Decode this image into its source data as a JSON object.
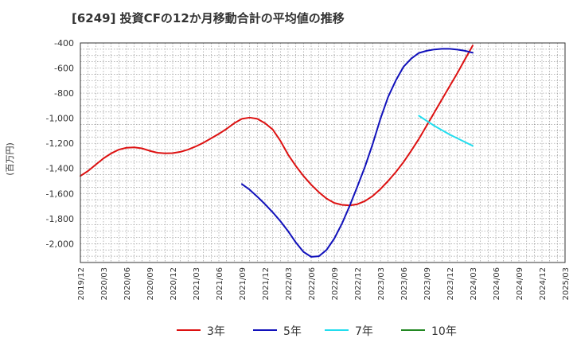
{
  "chart_data": {
    "type": "line",
    "title": "[6249]  投資CFの12か月移動合計の平均値の推移",
    "ylabel": "(百万円)",
    "xlabel": "",
    "ylim": [
      -2150,
      -400
    ],
    "y_ticks": [
      -400,
      -600,
      -800,
      -1000,
      -1200,
      -1400,
      -1600,
      -1800,
      -2000
    ],
    "y_tick_labels": [
      "-400",
      "-600",
      "-800",
      "-1,000",
      "-1,200",
      "-1,400",
      "-1,600",
      "-1,800",
      "-2,000"
    ],
    "x_tick_labels": [
      "2019/12",
      "2020/03",
      "2020/06",
      "2020/09",
      "2020/12",
      "2021/03",
      "2021/06",
      "2021/09",
      "2021/12",
      "2022/03",
      "2022/06",
      "2022/09",
      "2022/12",
      "2023/03",
      "2023/06",
      "2023/09",
      "2023/12",
      "2024/03",
      "2024/06",
      "2024/09",
      "2024/12",
      "2025/03"
    ],
    "x_range": [
      "2019/12",
      "2025/03"
    ],
    "grid": true,
    "legend_position": "bottom",
    "series": [
      {
        "name": "3年",
        "color": "#dd1111",
        "x": [
          "2019/12",
          "2020/01",
          "2020/02",
          "2020/03",
          "2020/04",
          "2020/05",
          "2020/06",
          "2020/07",
          "2020/08",
          "2020/09",
          "2020/10",
          "2020/11",
          "2020/12",
          "2021/01",
          "2021/02",
          "2021/03",
          "2021/04",
          "2021/05",
          "2021/06",
          "2021/07",
          "2021/08",
          "2021/09",
          "2021/10",
          "2021/11",
          "2021/12",
          "2022/01",
          "2022/02",
          "2022/03",
          "2022/04",
          "2022/05",
          "2022/06",
          "2022/07",
          "2022/08",
          "2022/09",
          "2022/10",
          "2022/11",
          "2022/12",
          "2023/01",
          "2023/02",
          "2023/03",
          "2023/04",
          "2023/05",
          "2023/06",
          "2023/07",
          "2023/08",
          "2023/09",
          "2023/10",
          "2023/11",
          "2023/12",
          "2024/01",
          "2024/02",
          "2024/03"
        ],
        "values": [
          -1460,
          -1420,
          -1370,
          -1320,
          -1280,
          -1250,
          -1235,
          -1232,
          -1240,
          -1260,
          -1275,
          -1280,
          -1278,
          -1268,
          -1250,
          -1225,
          -1195,
          -1160,
          -1125,
          -1085,
          -1040,
          -1005,
          -995,
          -1005,
          -1040,
          -1090,
          -1180,
          -1290,
          -1380,
          -1460,
          -1530,
          -1590,
          -1640,
          -1675,
          -1690,
          -1695,
          -1685,
          -1660,
          -1620,
          -1565,
          -1500,
          -1430,
          -1350,
          -1260,
          -1165,
          -1060,
          -955,
          -850,
          -745,
          -640,
          -530,
          -420
        ]
      },
      {
        "name": "5年",
        "color": "#1111bb",
        "x": [
          "2021/09",
          "2021/10",
          "2021/11",
          "2021/12",
          "2022/01",
          "2022/02",
          "2022/03",
          "2022/04",
          "2022/05",
          "2022/06",
          "2022/07",
          "2022/08",
          "2022/09",
          "2022/10",
          "2022/11",
          "2022/12",
          "2023/01",
          "2023/02",
          "2023/03",
          "2023/04",
          "2023/05",
          "2023/06",
          "2023/07",
          "2023/08",
          "2023/09",
          "2023/10",
          "2023/11",
          "2023/12",
          "2024/01",
          "2024/02",
          "2024/03"
        ],
        "values": [
          -1525,
          -1570,
          -1625,
          -1685,
          -1750,
          -1820,
          -1900,
          -1990,
          -2065,
          -2105,
          -2100,
          -2050,
          -1960,
          -1840,
          -1700,
          -1545,
          -1385,
          -1205,
          -1005,
          -830,
          -700,
          -590,
          -525,
          -480,
          -463,
          -452,
          -447,
          -447,
          -453,
          -463,
          -478
        ]
      },
      {
        "name": "7年",
        "color": "#22ddee",
        "x": [
          "2023/08",
          "2023/09",
          "2023/10",
          "2023/11",
          "2023/12",
          "2024/01",
          "2024/02",
          "2024/03"
        ],
        "values": [
          -980,
          -1020,
          -1060,
          -1095,
          -1130,
          -1160,
          -1190,
          -1220
        ]
      },
      {
        "name": "10年",
        "color": "#228822",
        "x": [],
        "values": []
      }
    ]
  }
}
